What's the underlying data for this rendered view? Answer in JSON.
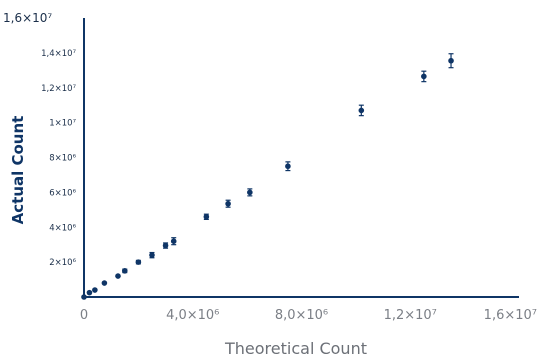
{
  "chart_data": {
    "type": "scatter",
    "title": "",
    "xlabel": "Theoretical Count",
    "ylabel": "Actual Count",
    "xlim": [
      0,
      16000000
    ],
    "ylim": [
      0,
      16000000
    ],
    "x_tick_labels": [
      {
        "value": 0,
        "label": "0"
      },
      {
        "value": 4000000,
        "label": "4,0×10⁶"
      },
      {
        "value": 8000000,
        "label": "8,0×10⁶"
      },
      {
        "value": 12000000,
        "label": "1,2×10⁷"
      },
      {
        "value": 16000000,
        "label": "1,6×10⁷"
      }
    ],
    "y_tick_labels": [
      {
        "value": 2000000,
        "label": "2×10⁶"
      },
      {
        "value": 4000000,
        "label": "4×10⁶"
      },
      {
        "value": 6000000,
        "label": "6×10⁶"
      },
      {
        "value": 8000000,
        "label": "8×10⁶"
      },
      {
        "value": 10000000,
        "label": "1×10⁷"
      },
      {
        "value": 12000000,
        "label": "1,2×10⁷"
      },
      {
        "value": 14000000,
        "label": "1,4×10⁷"
      },
      {
        "value": 16000000,
        "label": "1,6×10⁷"
      }
    ],
    "points": [
      {
        "x": 0,
        "y": 0,
        "err": 0
      },
      {
        "x": 200000,
        "y": 250000,
        "err": 0
      },
      {
        "x": 400000,
        "y": 400000,
        "err": 0
      },
      {
        "x": 750000,
        "y": 800000,
        "err": 0
      },
      {
        "x": 1250000,
        "y": 1200000,
        "err": 0
      },
      {
        "x": 1500000,
        "y": 1500000,
        "err": 100000
      },
      {
        "x": 2000000,
        "y": 2000000,
        "err": 100000
      },
      {
        "x": 2500000,
        "y": 2400000,
        "err": 150000
      },
      {
        "x": 3000000,
        "y": 2950000,
        "err": 150000
      },
      {
        "x": 3300000,
        "y": 3200000,
        "err": 200000
      },
      {
        "x": 4500000,
        "y": 4600000,
        "err": 150000
      },
      {
        "x": 5300000,
        "y": 5350000,
        "err": 200000
      },
      {
        "x": 6100000,
        "y": 6000000,
        "err": 200000
      },
      {
        "x": 7500000,
        "y": 7500000,
        "err": 250000
      },
      {
        "x": 10200000,
        "y": 10700000,
        "err": 300000
      },
      {
        "x": 12500000,
        "y": 12650000,
        "err": 300000
      },
      {
        "x": 13500000,
        "y": 13550000,
        "err": 400000
      }
    ],
    "colors": {
      "marker": "#0f3566",
      "axis": "#0f3566",
      "x_tick_text": "#7b7f86",
      "x_label_text": "#6c7077"
    },
    "grid": false
  }
}
